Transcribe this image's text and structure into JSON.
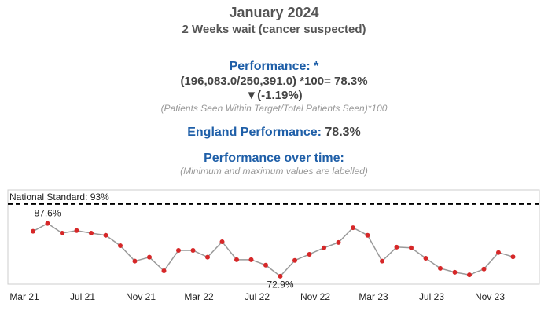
{
  "header": {
    "title": "January 2024",
    "subtitle": "2 Weeks wait (cancer suspected)"
  },
  "performance": {
    "label": "Performance: *",
    "calculation": "(196,083.0/250,391.0) *100= 78.3%",
    "change": "▼(-1.19%)",
    "formula": "(Patients Seen Within Target/Total Patients Seen)*100"
  },
  "england": {
    "label": "England Performance:",
    "value": "78.3%"
  },
  "over_time": {
    "label": "Performance over time:",
    "note": "(Minimum and maximum values are labelled)"
  },
  "chart_data": {
    "type": "line",
    "categories": [
      "Mar 21",
      null,
      null,
      null,
      "Jul 21",
      null,
      null,
      null,
      "Nov 21",
      null,
      null,
      null,
      "Mar 22",
      null,
      null,
      null,
      "Jul 22",
      null,
      null,
      null,
      "Nov 22",
      null,
      null,
      null,
      "Mar 23",
      null,
      null,
      null,
      "Jul 23",
      null,
      null,
      null,
      "Nov 23",
      null
    ],
    "series": [
      {
        "name": "Performance",
        "color": "#d62728",
        "values": [
          85.4,
          87.6,
          84.9,
          85.6,
          84.9,
          84.3,
          81.4,
          77.1,
          78.2,
          74.4,
          80.1,
          80.1,
          78.2,
          82.5,
          77.5,
          77.5,
          76.0,
          72.9,
          77.3,
          79.0,
          80.8,
          82.3,
          86.4,
          84.3,
          77.1,
          81.0,
          80.8,
          77.9,
          75.1,
          74.0,
          73.3,
          74.9,
          79.5,
          78.3
        ],
        "value_labels": [
          null,
          "87.6%",
          null,
          null,
          null,
          null,
          null,
          null,
          null,
          null,
          null,
          null,
          null,
          null,
          null,
          null,
          null,
          "72.9%",
          null,
          null,
          null,
          null,
          null,
          null,
          null,
          null,
          null,
          null,
          null,
          null,
          null,
          null,
          null,
          null
        ]
      }
    ],
    "ylim": [
      70.7,
      96.9
    ],
    "standard": {
      "label": "National Standard: 93%",
      "value": 93
    }
  }
}
